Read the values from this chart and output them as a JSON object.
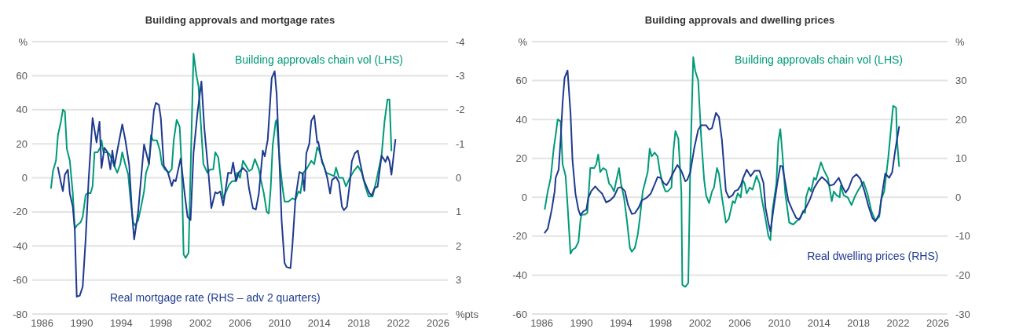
{
  "chart_data": [
    {
      "type": "line",
      "title": "Building approvals and mortgage rates",
      "xlim": [
        1985,
        2027
      ],
      "xticks": [
        1986,
        1990,
        1994,
        1998,
        2002,
        2006,
        2010,
        2014,
        2018,
        2022,
        2026
      ],
      "ylim": [
        -80,
        80
      ],
      "yticks": [
        -80,
        -60,
        -40,
        -20,
        0,
        20,
        40,
        60,
        {
          "value": 80,
          "label": "%"
        }
      ],
      "y2lim": [
        4,
        -4
      ],
      "y2ticks": [
        {
          "value": 4,
          "label": "%pts"
        },
        3,
        2,
        1,
        0,
        -1,
        -2,
        -3,
        -4
      ],
      "grid": "y",
      "legend": false,
      "series": [
        {
          "name": "Building approvals chain vol (LHS)",
          "color": "#009a78",
          "x": [
            1986.9,
            1987.1,
            1987.4,
            1987.6,
            1987.9,
            1988.1,
            1988.3,
            1988.5,
            1988.8,
            1989.1,
            1989.3,
            1989.5,
            1989.9,
            1990.1,
            1990.4,
            1990.6,
            1990.9,
            1991.1,
            1991.3,
            1991.6,
            1991.9,
            1992,
            1992.2,
            1992.5,
            1992.8,
            1993.1,
            1993.3,
            1993.6,
            1993.9,
            1994.1,
            1994.4,
            1994.7,
            1994.9,
            1995.2,
            1995.4,
            1995.7,
            1996,
            1996.3,
            1996.5,
            1996.8,
            1997,
            1997.2,
            1997.6,
            1997.9,
            1998.1,
            1998.4,
            1998.8,
            1999.1,
            1999.3,
            1999.6,
            1999.9,
            2000.1,
            2000.3,
            2000.5,
            2000.8,
            2001.1,
            2001.3,
            2001.6,
            2001.8,
            2002.3,
            2002.7,
            2003,
            2003.3,
            2003.5,
            2003.8,
            2004.1,
            2004.3,
            2004.6,
            2004.9,
            2005.2,
            2005.5,
            2005.7,
            2006,
            2006.3,
            2006.6,
            2006.9,
            2007.2,
            2007.5,
            2007.9,
            2008.1,
            2008.4,
            2008.7,
            2008.9,
            2009.1,
            2009.3,
            2009.6,
            2009.7,
            2010,
            2010.3,
            2010.5,
            2010.9,
            2011.3,
            2011.6,
            2011.9,
            2012.1,
            2012.4,
            2012.7,
            2013,
            2013.2,
            2013.5,
            2013.8,
            2014,
            2014.3,
            2014.7,
            2015.1,
            2015.5,
            2015.7,
            2016,
            2016.4,
            2016.7,
            2017.1,
            2017.5,
            2017.9,
            2018.3,
            2018.7,
            2019,
            2019.4,
            2019.8,
            2020.3,
            2020.6,
            2020.9,
            2021.1,
            2021.3
          ],
          "values": [
            -6,
            4,
            10,
            25,
            33,
            40,
            39,
            17,
            10,
            -9,
            -30,
            -28,
            -26,
            -23,
            -10,
            -9,
            -9,
            -5,
            15,
            15,
            18,
            22,
            15,
            15,
            14,
            10,
            7,
            3,
            8,
            15,
            8,
            2,
            -11,
            -26,
            -28,
            -25,
            -17,
            -8,
            3,
            8,
            25,
            22,
            22,
            16,
            8,
            5,
            3,
            5,
            22,
            34,
            30,
            7,
            -45,
            -47,
            -44,
            27,
            73,
            60,
            54,
            8,
            3,
            5,
            5,
            15,
            12,
            -3,
            -12,
            -8,
            -4,
            -2,
            -2,
            3,
            0,
            10,
            7,
            4,
            5,
            11,
            5,
            -1,
            -9,
            -20,
            -21,
            -6,
            19,
            33,
            34,
            10,
            -6,
            -14,
            -14,
            -12,
            -13,
            -8,
            -9,
            3,
            5,
            8,
            10,
            8,
            18,
            16,
            10,
            3,
            2,
            1,
            6,
            0,
            0,
            -5,
            0,
            4,
            7,
            3,
            -6,
            -11,
            -11,
            -1,
            13,
            33,
            46,
            46,
            16
          ]
        },
        {
          "name": "Real mortgage rate (RHS – adv 2 quarters)",
          "color": "#1e3a8f",
          "axis": "y2",
          "x": [
            1987.6,
            1987.9,
            1988.1,
            1988.3,
            1988.6,
            1988.8,
            1989.1,
            1989.3,
            1989.5,
            1989.8,
            1990.1,
            1990.4,
            1990.7,
            1991.1,
            1991.5,
            1991.8,
            1992,
            1992.3,
            1992.6,
            1992.9,
            1993.1,
            1993.3,
            1993.6,
            1994.1,
            1994.4,
            1994.8,
            1995.1,
            1995.3,
            1995.7,
            1996.3,
            1996.8,
            1997.3,
            1997.5,
            1997.8,
            1998,
            1998.3,
            1998.7,
            1999.1,
            1999.3,
            1999.5,
            2000,
            2000.4,
            2000.7,
            2001,
            2001.3,
            2001.7,
            2002.1,
            2002.4,
            2002.8,
            2003.1,
            2003.5,
            2003.7,
            2004,
            2004.3,
            2004.5,
            2004.8,
            2005.1,
            2005.3,
            2005.6,
            2005.9,
            2006.3,
            2006.7,
            2006.9,
            2007.3,
            2007.6,
            2007.9,
            2008.3,
            2008.5,
            2008.8,
            2009.2,
            2009.5,
            2009.7,
            2010,
            2010.2,
            2010.5,
            2010.7,
            2011.1,
            2011.3,
            2011.6,
            2012,
            2012.3,
            2012.5,
            2012.7,
            2013,
            2013.2,
            2013.5,
            2013.8,
            2013.9,
            2014.3,
            2014.5,
            2014.8,
            2015.1,
            2015.3,
            2015.7,
            2016,
            2016.3,
            2016.5,
            2016.8,
            2017.1,
            2017.3,
            2017.6,
            2017.9,
            2018.1,
            2018.5,
            2018.9,
            2019.1,
            2019.3,
            2019.6,
            2019.9,
            2020.3,
            2020.7,
            2020.9,
            2021.1,
            2021.3,
            2021.7
          ],
          "values": [
            -0.3,
            0.14,
            0.39,
            -0.09,
            -0.24,
            0.46,
            0.85,
            1.52,
            3.49,
            3.46,
            3.2,
            1.8,
            0.06,
            -1.76,
            -1.04,
            -1.65,
            -0.29,
            -0.88,
            -0.76,
            -0.25,
            -0.8,
            -0.33,
            -0.8,
            -1.57,
            -1.13,
            -0.37,
            1.09,
            1.81,
            1.01,
            -0.98,
            -0.41,
            -1.98,
            -2.2,
            -2.14,
            -1.75,
            -0.35,
            -0.17,
            0.24,
            0.06,
            0.1,
            -0.57,
            0.46,
            1.15,
            1.24,
            -0.72,
            -1.91,
            -2.83,
            -1.43,
            -0.17,
            0.89,
            0.42,
            0.46,
            0.4,
            0.81,
            0.43,
            -0.15,
            -0.13,
            -0.45,
            0.1,
            -0.17,
            -0.29,
            -0.17,
            0.3,
            0.89,
            0.93,
            0.46,
            -0.8,
            -0.63,
            -1.12,
            -2.93,
            -3.13,
            -2.46,
            -0.33,
            1.24,
            2.5,
            2.62,
            2.65,
            1.95,
            0.61,
            -0.17,
            -0.13,
            0.38,
            -0.72,
            -1,
            -1.67,
            -1.83,
            -1.04,
            -1.06,
            -0.45,
            -0.33,
            -0.02,
            0.46,
            0.06,
            -0.03,
            0.14,
            0.85,
            0.95,
            0.85,
            0.14,
            -0.49,
            -0.72,
            -0.8,
            -0.49,
            0.06,
            0.34,
            0.46,
            0.52,
            0.3,
            0.26,
            -0.65,
            -0.47,
            -0.63,
            -0.49,
            -0.09,
            -1.12
          ]
        }
      ]
    },
    {
      "type": "line",
      "title": "Building approvals and dwelling prices",
      "xlim": [
        1985,
        2027
      ],
      "xticks": [
        1986,
        1990,
        1994,
        1998,
        2002,
        2006,
        2010,
        2014,
        2018,
        2022,
        2026
      ],
      "ylim": [
        -60,
        80
      ],
      "yticks": [
        -60,
        -40,
        -20,
        0,
        20,
        40,
        60,
        {
          "value": 80,
          "label": "%"
        }
      ],
      "y2lim": [
        -30,
        40
      ],
      "y2ticks": [
        -30,
        -20,
        -10,
        0,
        10,
        20,
        30,
        {
          "value": 40,
          "label": "%"
        }
      ],
      "grid": "y",
      "legend": false,
      "series": [
        {
          "name": "Building approvals chain vol (LHS)",
          "color": "#009a78",
          "x": [
            1986.3,
            1986.6,
            1986.9,
            1987.2,
            1987.4,
            1987.6,
            1987.9,
            1988.1,
            1988.4,
            1988.6,
            1988.9,
            1989.1,
            1989.4,
            1989.7,
            1989.9,
            1990,
            1990.3,
            1990.6,
            1990.9,
            1991.3,
            1991.5,
            1991.7,
            1991.9,
            1992.2,
            1992.5,
            1992.8,
            1993,
            1993.3,
            1993.5,
            1993.8,
            1994,
            1994.3,
            1994.6,
            1994.9,
            1995.1,
            1995.4,
            1995.7,
            1995.9,
            1996.2,
            1996.5,
            1996.7,
            1996.9,
            1997.1,
            1997.4,
            1997.7,
            1997.9,
            1998.2,
            1998.5,
            1998.7,
            1999.1,
            1999.3,
            1999.5,
            1999.8,
            2000.1,
            2000.2,
            2000.5,
            2000.8,
            2001,
            2001.3,
            2001.5,
            2001.8,
            2002.1,
            2002.4,
            2002.6,
            2002.9,
            2003.2,
            2003.4,
            2003.7,
            2003.9,
            2004.2,
            2004.6,
            2004.9,
            2005.3,
            2005.5,
            2005.8,
            2006.1,
            2006.3,
            2006.5,
            2006.7,
            2007,
            2007.3,
            2007.7,
            2008,
            2008.2,
            2008.6,
            2008.9,
            2009.1,
            2009.3,
            2009.7,
            2009.9,
            2010.1,
            2010.3,
            2010.6,
            2011,
            2011.4,
            2011.8,
            2012.1,
            2012.4,
            2012.6,
            2012.7,
            2013,
            2013.2,
            2013.5,
            2013.7,
            2014.2,
            2014.5,
            2014.9,
            2015.3,
            2015.5,
            2015.8,
            2016.1,
            2016.2,
            2016.5,
            2016.9,
            2017.3,
            2017.6,
            2017.9,
            2018.5,
            2018.9,
            2019.3,
            2019.7,
            2020.1,
            2020.3,
            2020.6,
            2021,
            2021.5,
            2021.8,
            2021.9,
            2022.1
          ],
          "values": [
            -6,
            3,
            10,
            25,
            32,
            40,
            39,
            17,
            11,
            -4,
            -29,
            -27,
            -26,
            -23,
            -12,
            -9,
            -9,
            -8,
            15,
            15,
            17,
            22,
            13,
            15,
            14,
            7,
            6,
            3,
            8,
            15,
            7,
            0,
            -12,
            -26,
            -28,
            -26,
            -19,
            -11,
            3,
            9,
            13,
            25,
            21,
            23,
            21,
            14,
            7,
            3,
            3,
            5,
            24,
            34,
            30,
            3,
            -45,
            -46,
            -44,
            16,
            72,
            65,
            60,
            31,
            9,
            1,
            -3,
            3,
            5,
            15,
            12,
            0,
            -13,
            -11,
            -2,
            -3,
            2,
            0,
            9,
            7,
            2,
            5,
            4,
            11,
            7,
            0,
            -11,
            -20,
            -22,
            -7,
            7,
            29,
            35,
            23,
            2,
            -13,
            -14,
            -12,
            -11,
            -7,
            -8,
            0,
            5,
            3,
            10,
            9,
            18,
            14,
            10,
            -2,
            3,
            1,
            0,
            6,
            1,
            0,
            -4,
            0,
            3,
            8,
            2,
            -7,
            -12,
            -10,
            -1,
            3,
            20,
            47,
            46,
            29,
            16
          ]
        },
        {
          "name": "Real dwelling prices (RHS)",
          "color": "#1e3a8f",
          "axis": "y2",
          "x": [
            1986.3,
            1986.6,
            1987,
            1987.3,
            1987.4,
            1987.7,
            1987.9,
            1988.1,
            1988.3,
            1988.6,
            1988.9,
            1989.1,
            1989.4,
            1989.7,
            1989.9,
            1990.2,
            1990.5,
            1990.7,
            1991,
            1991.4,
            1991.7,
            1992.1,
            1992.5,
            1992.9,
            1993.3,
            1993.7,
            1994,
            1994.4,
            1994.7,
            1995.1,
            1995.4,
            1995.8,
            1996.1,
            1996.6,
            1997,
            1997.4,
            1997.7,
            1998,
            1998.3,
            1998.6,
            1998.9,
            1999.3,
            1999.7,
            2000.1,
            2000.5,
            2000.7,
            2001,
            2001.4,
            2001.8,
            2002.1,
            2002.6,
            2002.9,
            2003.2,
            2003.6,
            2003.9,
            2004.2,
            2004.6,
            2004.9,
            2005.3,
            2005.5,
            2005.8,
            2006.1,
            2006.3,
            2006.7,
            2007.1,
            2007.5,
            2008,
            2008.4,
            2008.6,
            2008.9,
            2009.1,
            2009.4,
            2009.8,
            2010.1,
            2010.3,
            2010.6,
            2010.9,
            2011.3,
            2011.7,
            2012,
            2012.3,
            2012.7,
            2013.1,
            2013.5,
            2013.9,
            2014.3,
            2014.7,
            2015.1,
            2015.5,
            2016,
            2016.4,
            2016.7,
            2017,
            2017.4,
            2017.8,
            2018.2,
            2018.6,
            2019,
            2019.4,
            2019.7,
            2020.1,
            2020.3,
            2020.7,
            2021.1,
            2021.4,
            2021.7,
            2022.1
          ],
          "values": [
            -9.1,
            -8.1,
            -3.2,
            1.6,
            5,
            7.1,
            14.8,
            24.3,
            30.7,
            32.6,
            21.6,
            9.5,
            0.9,
            -3.2,
            -4.6,
            -3.6,
            -3.2,
            -0.1,
            1.6,
            2.8,
            1.9,
            0.9,
            -1.3,
            -0.8,
            0.2,
            2.4,
            2.6,
            1.6,
            -1.9,
            -4.3,
            -4.1,
            -2.6,
            -0.8,
            -0.1,
            0.9,
            3.3,
            5.2,
            5,
            3.7,
            3.1,
            4.3,
            6.4,
            8.3,
            6.8,
            4.1,
            4.5,
            6.4,
            12.6,
            17.3,
            18.5,
            18.5,
            17.4,
            17.8,
            21.7,
            20.6,
            14.7,
            1.6,
            -0.1,
            0.6,
            1.6,
            1.9,
            3,
            4.7,
            7.1,
            5.4,
            6.8,
            6.8,
            3.7,
            -2.6,
            -6.7,
            -8.8,
            -3.2,
            3.7,
            8.1,
            8,
            3.7,
            -0.8,
            -3.2,
            -5.3,
            -5.7,
            -4.3,
            -2.6,
            -0.5,
            2.3,
            4,
            5.2,
            4.3,
            3,
            3.3,
            5,
            2.6,
            1.2,
            2.3,
            5,
            5.9,
            4.7,
            1.6,
            -2.2,
            -5.3,
            -6.2,
            -4.3,
            -0.5,
            6.1,
            5,
            6.4,
            11.9,
            18.1
          ]
        }
      ]
    }
  ]
}
